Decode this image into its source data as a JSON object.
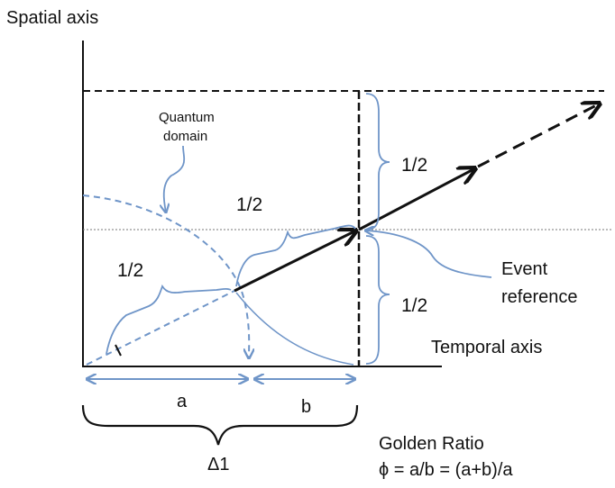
{
  "labels": {
    "spatial_axis": "Spatial axis",
    "temporal_axis": "Temporal axis",
    "quantum_domain_line1": "Quantum",
    "quantum_domain_line2": "domain",
    "half_upper_right": "1/2",
    "half_lower_right": "1/2",
    "half_middle": "1/2",
    "half_left": "1/2",
    "event_reference_line1": "Event",
    "event_reference_line2": "reference",
    "segment_a": "a",
    "segment_b": "b",
    "delta": "Δ1",
    "golden_ratio_title": "Golden Ratio",
    "golden_ratio_formula": "ϕ = a/b = (a+b)/a"
  },
  "colors": {
    "black": "#111111",
    "blue": "#6f95c8",
    "grey_dotted": "#777777"
  }
}
